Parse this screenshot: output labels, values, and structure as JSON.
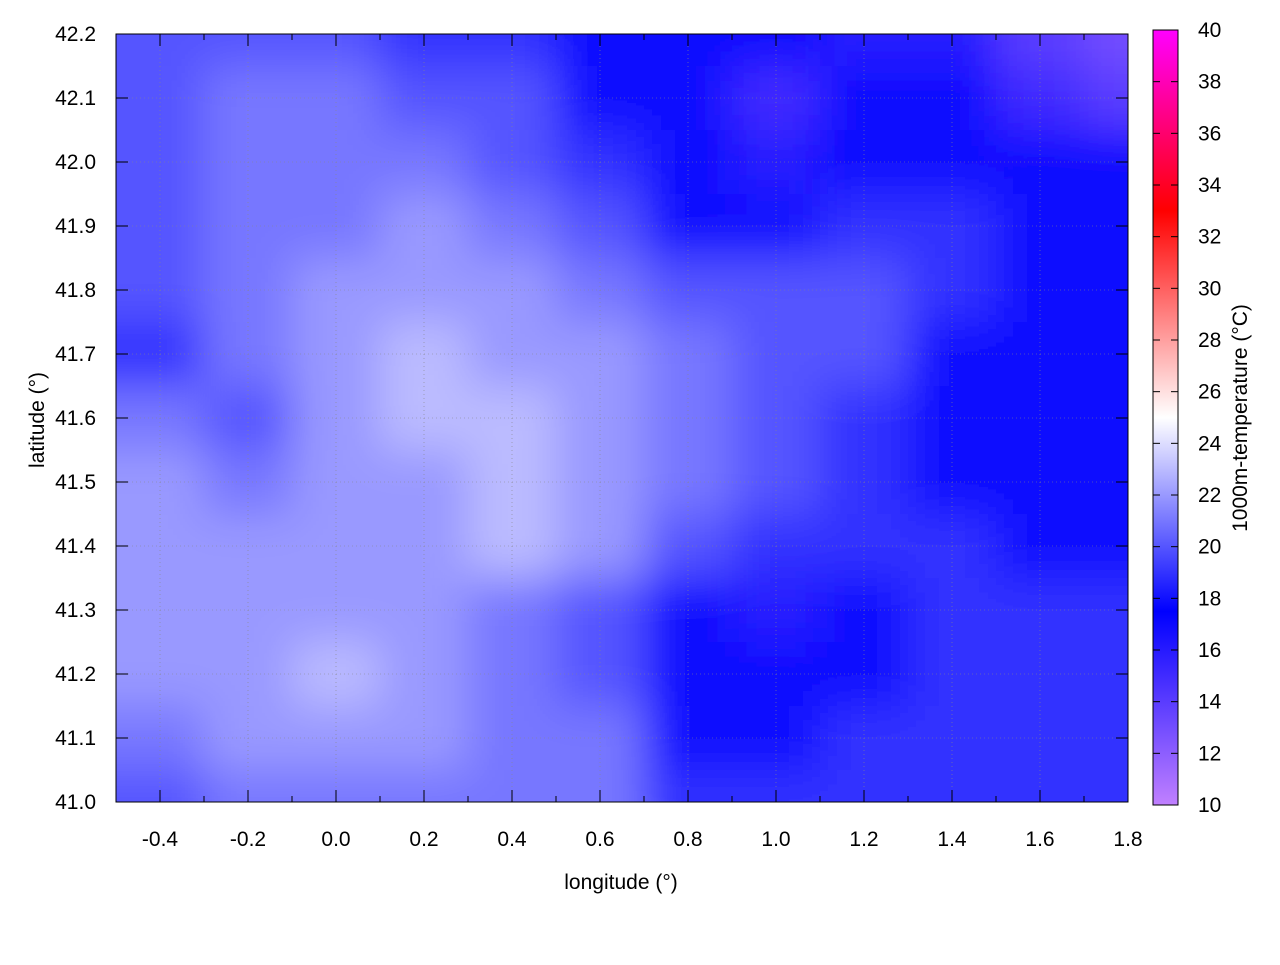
{
  "chart_data": {
    "type": "heatmap",
    "title": "",
    "xlabel": "longitude (°)",
    "ylabel": "latitude (°)",
    "colorbar_label": "1000m-temperature (°C)",
    "xlim": [
      -0.5,
      1.8
    ],
    "ylim": [
      41.0,
      42.2
    ],
    "zlim": [
      10,
      40
    ],
    "grid": true,
    "contours": true,
    "xticks": [
      "-0.4",
      "-0.2",
      "0.0",
      "0.2",
      "0.4",
      "0.6",
      "0.8",
      "1.0",
      "1.2",
      "1.4",
      "1.6",
      "1.8"
    ],
    "yticks": [
      "41.0",
      "41.1",
      "41.2",
      "41.3",
      "41.4",
      "41.5",
      "41.6",
      "41.7",
      "41.8",
      "41.9",
      "42.0",
      "42.1",
      "42.2"
    ],
    "cbticks": [
      "10",
      "12",
      "14",
      "16",
      "18",
      "20",
      "22",
      "24",
      "26",
      "28",
      "30",
      "32",
      "34",
      "36",
      "38",
      "40"
    ],
    "colormap": [
      {
        "value": 10,
        "color": "#c080ff"
      },
      {
        "value": 17.5,
        "color": "#0000ff"
      },
      {
        "value": 25,
        "color": "#ffffff"
      },
      {
        "value": 33,
        "color": "#ff0000"
      },
      {
        "value": 40,
        "color": "#ff00ff"
      }
    ],
    "lon": [
      -0.4,
      -0.2,
      0.0,
      0.2,
      0.4,
      0.6,
      0.8,
      1.0,
      1.2,
      1.4,
      1.6,
      1.8
    ],
    "lat": [
      42.2,
      42.1,
      42.0,
      41.9,
      41.8,
      41.7,
      41.6,
      41.5,
      41.4,
      41.3,
      41.2,
      41.1,
      41.0
    ],
    "values": [
      [
        20,
        20,
        20,
        19,
        19,
        18,
        18,
        17,
        16,
        16,
        14,
        13
      ],
      [
        20,
        21,
        21,
        20,
        20,
        18,
        17,
        15,
        17,
        17,
        15,
        14
      ],
      [
        20,
        21,
        21,
        21,
        20,
        19,
        17,
        16,
        18,
        18,
        17,
        17
      ],
      [
        20,
        21,
        21,
        22,
        21,
        20,
        18,
        18,
        19,
        19,
        18,
        18
      ],
      [
        20,
        21,
        22,
        22,
        22,
        21,
        20,
        20,
        20,
        19,
        18,
        18
      ],
      [
        19,
        21,
        22,
        23,
        22,
        22,
        21,
        20,
        20,
        18,
        18,
        18
      ],
      [
        21,
        20,
        22,
        23,
        23,
        22,
        21,
        20,
        19,
        18,
        18,
        18
      ],
      [
        22,
        21,
        22,
        22,
        23,
        22,
        21,
        20,
        19,
        18,
        18,
        18
      ],
      [
        22,
        22,
        22,
        22,
        23,
        22,
        20,
        19,
        19,
        19,
        18,
        18
      ],
      [
        22,
        22,
        22,
        22,
        21,
        20,
        18,
        16,
        18,
        19,
        19,
        19
      ],
      [
        22,
        22,
        23,
        22,
        21,
        20,
        18,
        17,
        18,
        19,
        19,
        19
      ],
      [
        21,
        22,
        22,
        22,
        21,
        21,
        18,
        18,
        19,
        19,
        19,
        19
      ],
      [
        20,
        21,
        21,
        21,
        21,
        21,
        19,
        19,
        19,
        19,
        19,
        19
      ]
    ]
  }
}
